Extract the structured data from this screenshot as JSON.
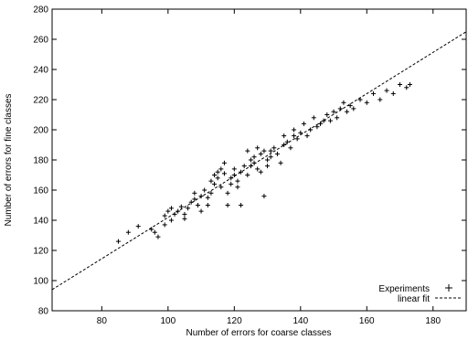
{
  "chart_data": {
    "type": "scatter",
    "title": "",
    "xlabel": "Number of errors for coarse classes",
    "ylabel": "Number of errors for fine classes",
    "xlim": [
      65,
      190
    ],
    "ylim": [
      80,
      280
    ],
    "xticks": [
      80,
      100,
      120,
      140,
      160,
      180
    ],
    "yticks": [
      80,
      100,
      120,
      140,
      160,
      180,
      200,
      220,
      240,
      260,
      280
    ],
    "grid": false,
    "legend_position": "bottom-right",
    "series": [
      {
        "name": "Experiments",
        "kind": "points",
        "marker": "+",
        "points": [
          [
            85,
            126
          ],
          [
            88,
            132
          ],
          [
            91,
            136
          ],
          [
            95,
            134
          ],
          [
            96,
            132
          ],
          [
            97,
            129
          ],
          [
            99,
            137
          ],
          [
            99,
            143
          ],
          [
            100,
            146
          ],
          [
            101,
            148
          ],
          [
            101,
            140
          ],
          [
            102,
            144
          ],
          [
            103,
            146
          ],
          [
            104,
            149
          ],
          [
            105,
            144
          ],
          [
            105,
            141
          ],
          [
            106,
            148
          ],
          [
            107,
            152
          ],
          [
            108,
            158
          ],
          [
            108,
            154
          ],
          [
            109,
            150
          ],
          [
            110,
            156
          ],
          [
            110,
            146
          ],
          [
            111,
            160
          ],
          [
            112,
            155
          ],
          [
            112,
            150
          ],
          [
            113,
            158
          ],
          [
            113,
            166
          ],
          [
            114,
            164
          ],
          [
            114,
            170
          ],
          [
            115,
            172
          ],
          [
            115,
            168
          ],
          [
            116,
            174
          ],
          [
            116,
            162
          ],
          [
            117,
            178
          ],
          [
            117,
            171
          ],
          [
            118,
            158
          ],
          [
            118,
            150
          ],
          [
            119,
            164
          ],
          [
            119,
            168
          ],
          [
            120,
            170
          ],
          [
            120,
            174
          ],
          [
            121,
            166
          ],
          [
            121,
            162
          ],
          [
            122,
            172
          ],
          [
            122,
            150
          ],
          [
            123,
            176
          ],
          [
            124,
            170
          ],
          [
            124,
            186
          ],
          [
            125,
            180
          ],
          [
            125,
            176
          ],
          [
            126,
            182
          ],
          [
            126,
            178
          ],
          [
            127,
            174
          ],
          [
            127,
            188
          ],
          [
            128,
            172
          ],
          [
            128,
            184
          ],
          [
            129,
            186
          ],
          [
            129,
            156
          ],
          [
            130,
            180
          ],
          [
            130,
            176
          ],
          [
            131,
            186
          ],
          [
            131,
            182
          ],
          [
            132,
            188
          ],
          [
            133,
            184
          ],
          [
            134,
            178
          ],
          [
            135,
            190
          ],
          [
            135,
            196
          ],
          [
            136,
            192
          ],
          [
            137,
            188
          ],
          [
            138,
            196
          ],
          [
            138,
            200
          ],
          [
            139,
            194
          ],
          [
            140,
            198
          ],
          [
            141,
            204
          ],
          [
            142,
            196
          ],
          [
            143,
            200
          ],
          [
            144,
            208
          ],
          [
            145,
            202
          ],
          [
            146,
            204
          ],
          [
            147,
            206
          ],
          [
            148,
            210
          ],
          [
            149,
            206
          ],
          [
            150,
            212
          ],
          [
            151,
            208
          ],
          [
            152,
            214
          ],
          [
            153,
            218
          ],
          [
            154,
            212
          ],
          [
            155,
            216
          ],
          [
            156,
            214
          ],
          [
            158,
            220
          ],
          [
            160,
            218
          ],
          [
            162,
            224
          ],
          [
            164,
            220
          ],
          [
            166,
            226
          ],
          [
            168,
            224
          ],
          [
            170,
            230
          ],
          [
            172,
            228
          ],
          [
            173,
            230
          ]
        ]
      },
      {
        "name": "linear fit",
        "kind": "line",
        "style": "dashed",
        "points": [
          [
            65,
            94
          ],
          [
            190,
            265
          ]
        ]
      }
    ]
  }
}
